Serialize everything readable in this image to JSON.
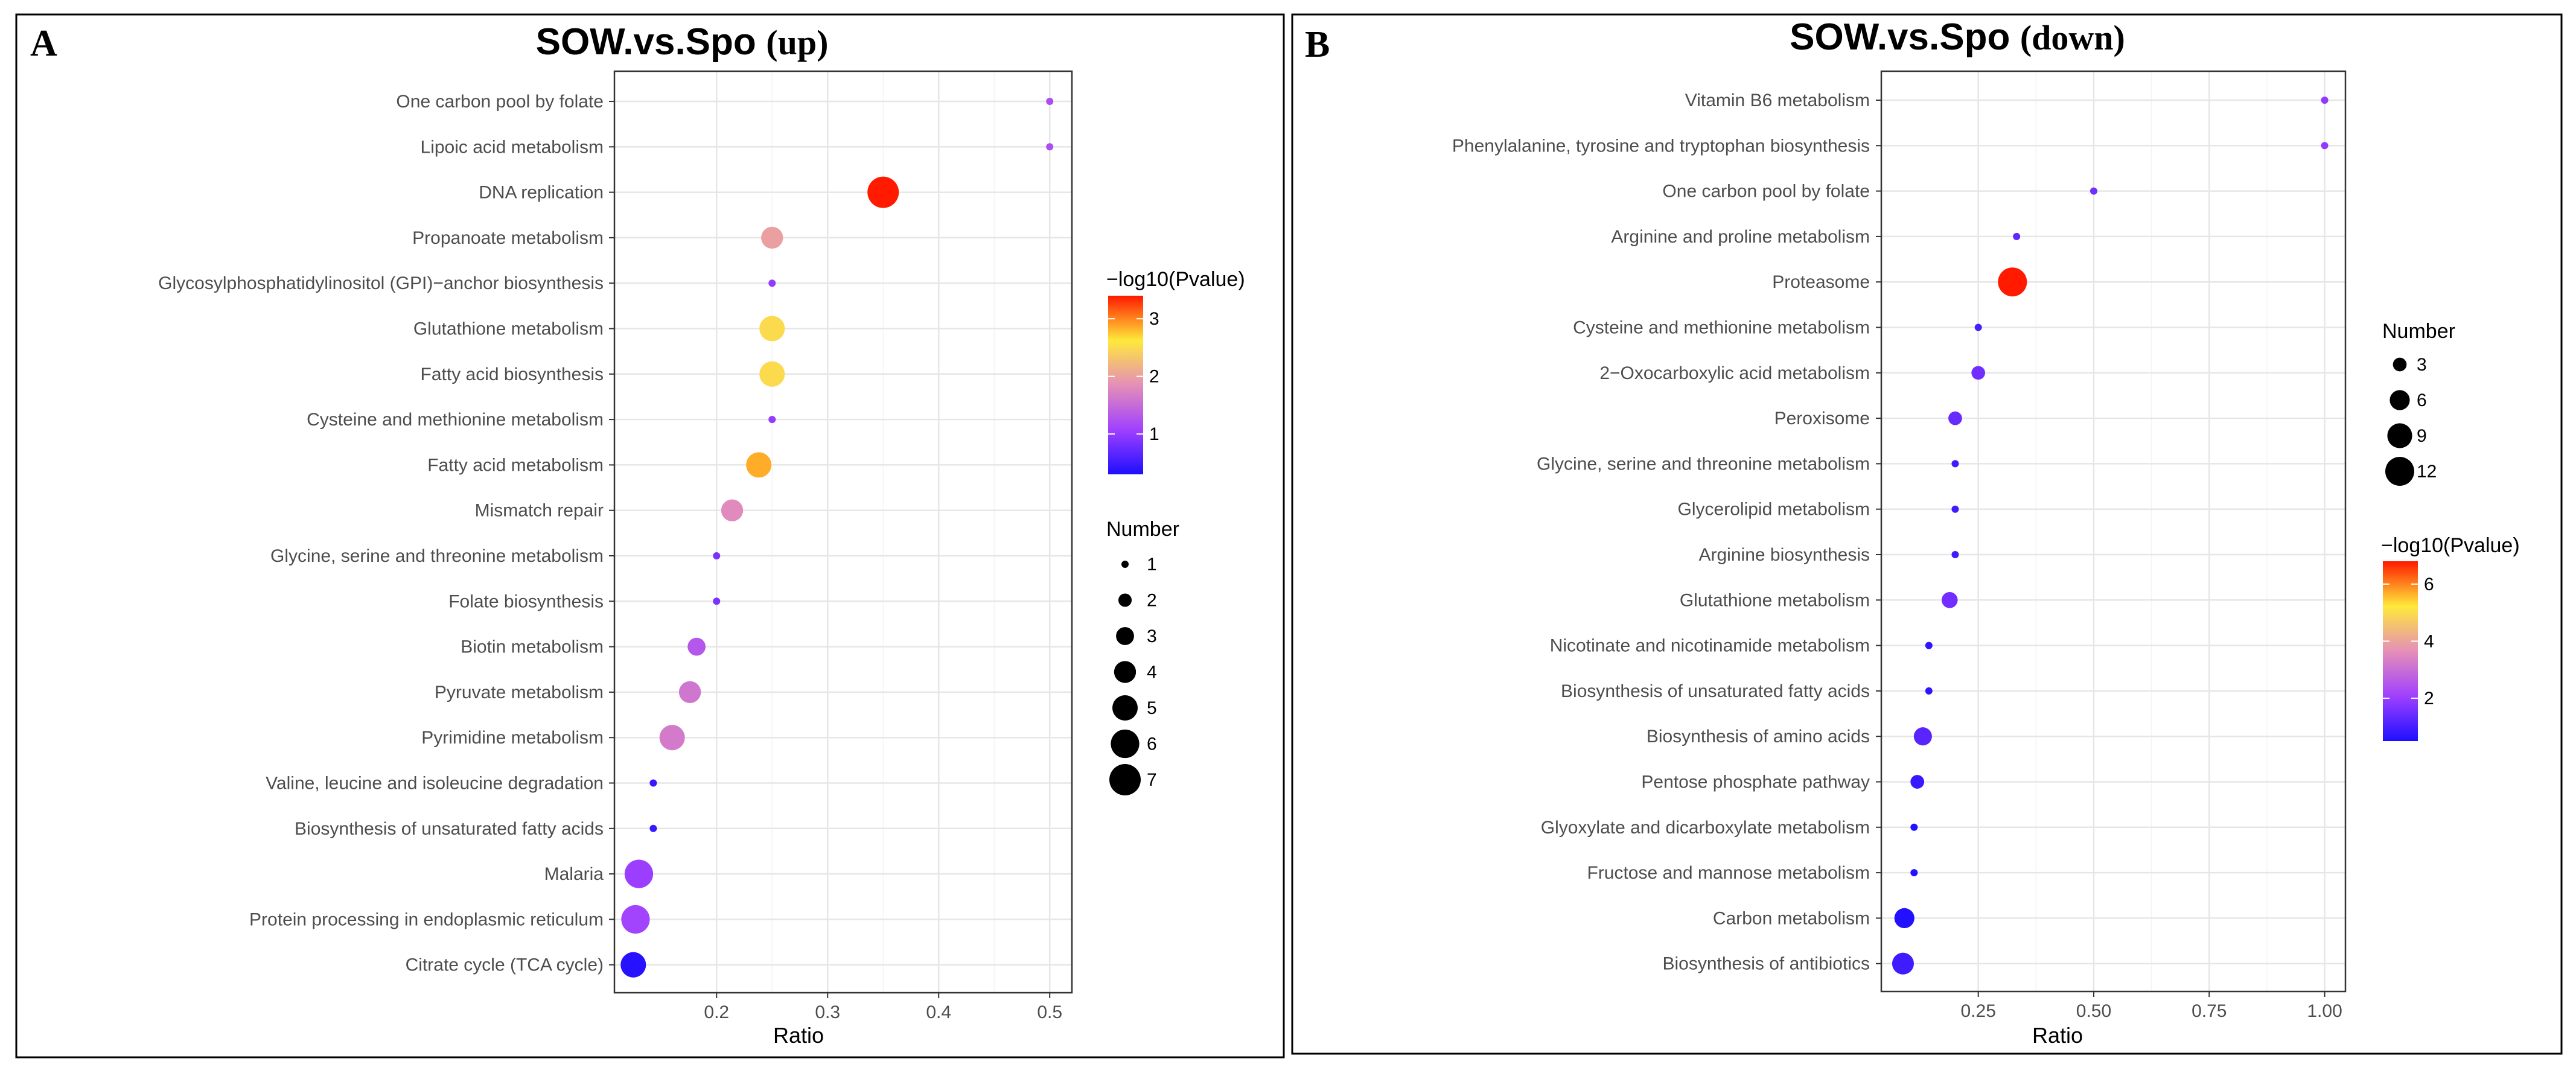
{
  "chart_data": [
    {
      "type": "scatter",
      "panel": "A",
      "title": "SOW.vs.Spo",
      "title_suffix": "(up)",
      "xlabel": "Ratio",
      "xlim": [
        0.108,
        0.52
      ],
      "xticks": [
        "0.2",
        "0.3",
        "0.4",
        "0.5"
      ],
      "xtick_values": [
        0.2,
        0.3,
        0.4,
        0.5
      ],
      "grid": true,
      "color_legend": {
        "title": "−log10(Pvalue)",
        "ticks": [
          "1",
          "2",
          "3"
        ],
        "tick_values": [
          1,
          2,
          3
        ],
        "range": [
          0.3,
          3.4
        ]
      },
      "size_legend": {
        "title": "Number",
        "labels": [
          "1",
          "2",
          "3",
          "4",
          "5",
          "6",
          "7"
        ],
        "values": [
          1,
          2,
          3,
          4,
          5,
          6,
          7
        ]
      },
      "points": [
        {
          "term": "One carbon pool by folate",
          "ratio": 0.5,
          "number": 1,
          "neglog10p": 1.2
        },
        {
          "term": "Lipoic acid metabolism",
          "ratio": 0.5,
          "number": 1,
          "neglog10p": 1.2
        },
        {
          "term": "DNA replication",
          "ratio": 0.35,
          "number": 7,
          "neglog10p": 3.4
        },
        {
          "term": "Propanoate metabolism",
          "ratio": 0.25,
          "number": 4,
          "neglog10p": 2.0
        },
        {
          "term": "Glycosylphosphatidylinositol (GPI)−anchor biosynthesis",
          "ratio": 0.25,
          "number": 1,
          "neglog10p": 1.0
        },
        {
          "term": "Glutathione metabolism",
          "ratio": 0.25,
          "number": 5,
          "neglog10p": 2.5
        },
        {
          "term": "Fatty acid biosynthesis",
          "ratio": 0.25,
          "number": 5,
          "neglog10p": 2.5
        },
        {
          "term": "Cysteine and methionine metabolism",
          "ratio": 0.25,
          "number": 1,
          "neglog10p": 1.0
        },
        {
          "term": "Fatty acid metabolism",
          "ratio": 0.238,
          "number": 5,
          "neglog10p": 2.85
        },
        {
          "term": "Mismatch repair",
          "ratio": 0.214,
          "number": 4,
          "neglog10p": 1.8
        },
        {
          "term": "Glycine, serine and threonine metabolism",
          "ratio": 0.2,
          "number": 1,
          "neglog10p": 0.85
        },
        {
          "term": "Folate biosynthesis",
          "ratio": 0.2,
          "number": 1,
          "neglog10p": 0.85
        },
        {
          "term": "Biotin metabolism",
          "ratio": 0.182,
          "number": 3,
          "neglog10p": 1.3
        },
        {
          "term": "Pyruvate metabolism",
          "ratio": 0.176,
          "number": 4,
          "neglog10p": 1.6
        },
        {
          "term": "Pyrimidine metabolism",
          "ratio": 0.16,
          "number": 5,
          "neglog10p": 1.65
        },
        {
          "term": "Valine, leucine and isoleucine degradation",
          "ratio": 0.143,
          "number": 1,
          "neglog10p": 0.45
        },
        {
          "term": "Biosynthesis of unsaturated fatty acids",
          "ratio": 0.143,
          "number": 1,
          "neglog10p": 0.45
        },
        {
          "term": "Malaria",
          "ratio": 0.13,
          "number": 6,
          "neglog10p": 1.05
        },
        {
          "term": "Protein processing in endoplasmic reticulum",
          "ratio": 0.127,
          "number": 6,
          "neglog10p": 1.1
        },
        {
          "term": "Citrate cycle (TCA cycle)",
          "ratio": 0.125,
          "number": 5,
          "neglog10p": 0.35
        }
      ]
    },
    {
      "type": "scatter",
      "panel": "B",
      "title": "SOW.vs.Spo",
      "title_suffix": "(down)",
      "xlabel": "Ratio",
      "xlim": [
        0.04,
        1.045
      ],
      "xticks": [
        "0.25",
        "0.50",
        "0.75",
        "1.00"
      ],
      "xtick_values": [
        0.25,
        0.5,
        0.75,
        1.0
      ],
      "grid": true,
      "color_legend": {
        "title": "−log10(Pvalue)",
        "ticks": [
          "2",
          "4",
          "6"
        ],
        "tick_values": [
          2,
          4,
          6
        ],
        "range": [
          0.5,
          6.8
        ]
      },
      "size_legend": {
        "title": "Number",
        "labels": [
          "3",
          "6",
          "9",
          "12"
        ],
        "values": [
          3,
          6,
          9,
          12
        ]
      },
      "points": [
        {
          "term": "Vitamin B6 metabolism",
          "ratio": 1.0,
          "number": 1,
          "neglog10p": 1.9
        },
        {
          "term": "Phenylalanine, tyrosine and tryptophan biosynthesis",
          "ratio": 1.0,
          "number": 1,
          "neglog10p": 1.9
        },
        {
          "term": "One carbon pool by folate",
          "ratio": 0.5,
          "number": 1,
          "neglog10p": 1.5
        },
        {
          "term": "Arginine and proline metabolism",
          "ratio": 0.333,
          "number": 1,
          "neglog10p": 1.3
        },
        {
          "term": "Proteasome",
          "ratio": 0.324,
          "number": 12,
          "neglog10p": 6.8
        },
        {
          "term": "Cysteine and methionine metabolism",
          "ratio": 0.25,
          "number": 1,
          "neglog10p": 1.0
        },
        {
          "term": "2−Oxocarboxylic acid metabolism",
          "ratio": 0.25,
          "number": 3,
          "neglog10p": 1.5
        },
        {
          "term": "Peroxisome",
          "ratio": 0.2,
          "number": 3,
          "neglog10p": 1.4
        },
        {
          "term": "Glycine, serine and threonine metabolism",
          "ratio": 0.2,
          "number": 1,
          "neglog10p": 0.9
        },
        {
          "term": "Glycerolipid metabolism",
          "ratio": 0.2,
          "number": 1,
          "neglog10p": 0.9
        },
        {
          "term": "Arginine biosynthesis",
          "ratio": 0.2,
          "number": 1,
          "neglog10p": 0.9
        },
        {
          "term": "Glutathione metabolism",
          "ratio": 0.188,
          "number": 4,
          "neglog10p": 1.5
        },
        {
          "term": "Nicotinate and nicotinamide metabolism",
          "ratio": 0.143,
          "number": 1,
          "neglog10p": 0.7
        },
        {
          "term": "Biosynthesis of unsaturated fatty acids",
          "ratio": 0.143,
          "number": 1,
          "neglog10p": 0.7
        },
        {
          "term": "Biosynthesis of amino acids",
          "ratio": 0.13,
          "number": 5,
          "neglog10p": 1.2
        },
        {
          "term": "Pentose phosphate pathway",
          "ratio": 0.118,
          "number": 3,
          "neglog10p": 0.8
        },
        {
          "term": "Glyoxylate and dicarboxylate metabolism",
          "ratio": 0.111,
          "number": 1,
          "neglog10p": 0.55
        },
        {
          "term": "Fructose and mannose metabolism",
          "ratio": 0.111,
          "number": 1,
          "neglog10p": 0.55
        },
        {
          "term": "Carbon metabolism",
          "ratio": 0.09,
          "number": 6,
          "neglog10p": 0.55
        },
        {
          "term": "Biosynthesis of antibiotics",
          "ratio": 0.087,
          "number": 7,
          "neglog10p": 0.9
        }
      ]
    }
  ],
  "colors": {
    "gradient_low": "#1e0fff",
    "gradient_mid_low": "#a040ff",
    "gradient_mid": "#e58fb8",
    "gradient_mid_high": "#ffe93a",
    "gradient_high": "#ff1a00",
    "grid": "#ebebeb",
    "panel_border": "#333333"
  }
}
